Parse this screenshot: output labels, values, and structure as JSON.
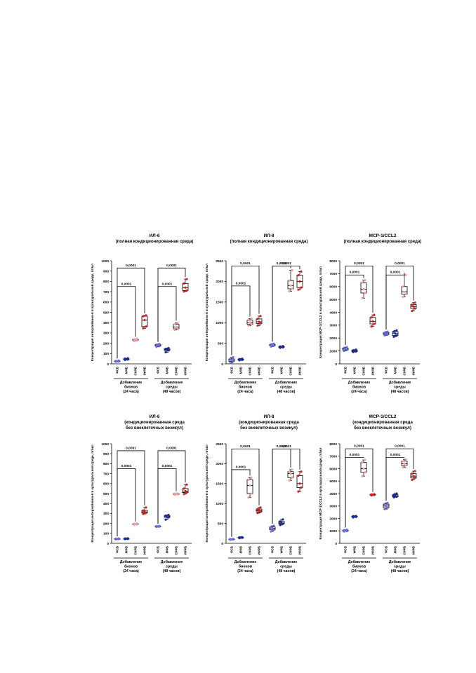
{
  "chart_data": [
    {
      "type": "box",
      "title": "ИЛ-6",
      "subtitle": "(полная кондиционированная среда)",
      "ylabel": "Концентрация интерлейкина-6 в культуральной среде, пг/мл",
      "ylim": [
        0,
        1000
      ],
      "yticks": [
        0,
        100,
        200,
        300,
        400,
        500,
        600,
        700,
        800,
        900,
        1000
      ],
      "categories": [
        "ФСБ",
        "МФБ",
        "СКФБ",
        "ИКФБ",
        "ФСБ",
        "МФБ",
        "СКФБ",
        "ИКФБ"
      ],
      "groups": [
        {
          "label": [
            "Добавление",
            "бионов",
            "(24 часа)"
          ]
        },
        {
          "label": [
            "Добавление",
            "среды",
            "(48 часов)"
          ]
        }
      ],
      "series_colors": [
        "#6a6ee0",
        "#1a2a9a",
        "#f0a0a0",
        "#d42020"
      ],
      "boxes": [
        {
          "min": 20,
          "q1": 22,
          "median": 25,
          "q3": 28,
          "max": 32
        },
        {
          "min": 38,
          "q1": 42,
          "median": 46,
          "q3": 50,
          "max": 54
        },
        {
          "min": 222,
          "q1": 228,
          "median": 233,
          "q3": 238,
          "max": 242
        },
        {
          "min": 345,
          "q1": 362,
          "median": 425,
          "q3": 462,
          "max": 470
        },
        {
          "min": 165,
          "q1": 172,
          "median": 180,
          "q3": 187,
          "max": 193
        },
        {
          "min": 112,
          "q1": 130,
          "median": 137,
          "q3": 145,
          "max": 153
        },
        {
          "min": 330,
          "q1": 340,
          "median": 357,
          "q3": 383,
          "max": 398
        },
        {
          "min": 702,
          "q1": 712,
          "median": 740,
          "q3": 780,
          "max": 822
        }
      ],
      "significance": [
        {
          "from": 0,
          "to": 3,
          "label": "0,0001",
          "y": 930
        },
        {
          "from": 0,
          "to": 2,
          "label": "0,0001",
          "y": 750
        },
        {
          "from": 4,
          "to": 7,
          "label": "0,0001",
          "y": 930
        },
        {
          "from": 4,
          "to": 6,
          "label": "0,0001",
          "y": 750
        }
      ]
    },
    {
      "type": "box",
      "title": "ИЛ-8",
      "subtitle": "(полная кондиционированная среда)",
      "ylabel": "Концентрация интерлейкина-8 в культуральной среде, пг/мл",
      "ylim": [
        0,
        2500
      ],
      "yticks": [
        0,
        500,
        1000,
        1500,
        2000,
        2500
      ],
      "categories": [
        "ФСБ",
        "МФБ",
        "СКФБ",
        "ИКФБ",
        "ФСБ",
        "МФБ",
        "СКФБ",
        "ИКФБ"
      ],
      "groups": [
        {
          "label": [
            "Добавление",
            "бионов",
            "(24 часа)"
          ]
        },
        {
          "label": [
            "Добавление",
            "среды",
            "(48 часов)"
          ]
        }
      ],
      "series_colors": [
        "#6a6ee0",
        "#1a2a9a",
        "#f0a0a0",
        "#d42020"
      ],
      "boxes": [
        {
          "min": 20,
          "q1": 60,
          "median": 90,
          "q3": 120,
          "max": 160
        },
        {
          "min": 85,
          "q1": 95,
          "median": 105,
          "q3": 115,
          "max": 125
        },
        {
          "min": 930,
          "q1": 960,
          "median": 1000,
          "q3": 1060,
          "max": 1100
        },
        {
          "min": 930,
          "q1": 980,
          "median": 1020,
          "q3": 1090,
          "max": 1160
        },
        {
          "min": 420,
          "q1": 440,
          "median": 455,
          "q3": 470,
          "max": 490
        },
        {
          "min": 390,
          "q1": 400,
          "median": 410,
          "q3": 420,
          "max": 430
        },
        {
          "min": 1760,
          "q1": 1820,
          "median": 1900,
          "q3": 2020,
          "max": 2270
        },
        {
          "min": 1800,
          "q1": 1850,
          "median": 2000,
          "q3": 2150,
          "max": 2240
        }
      ],
      "significance": [
        {
          "from": 0,
          "to": 3,
          "label": "0,0001",
          "y": 2370
        },
        {
          "from": 0,
          "to": 2,
          "label": "0,0001",
          "y": 1890
        },
        {
          "from": 4,
          "to": 7,
          "label": "0,0001",
          "y": 2370
        },
        {
          "from": 4,
          "to": 6,
          "label": "0,0001",
          "y": 2370
        }
      ]
    },
    {
      "type": "box",
      "title": "MCP-1/CCL2",
      "subtitle": "(полная кондиционированная среда)",
      "ylabel": "Концентрация MCP-1/CCL2 в культуральной среде, пг/мл",
      "ylim": [
        0,
        8000
      ],
      "yticks": [
        0,
        1000,
        2000,
        3000,
        4000,
        5000,
        6000,
        7000,
        8000
      ],
      "categories": [
        "ФСБ",
        "МФБ",
        "СКФБ",
        "ИКФБ",
        "ФСБ",
        "МФБ",
        "СКФБ",
        "ИКФБ"
      ],
      "groups": [
        {
          "label": [
            "Добавление",
            "бионов",
            "(24 часа)"
          ]
        },
        {
          "label": [
            "Добавление",
            "среды",
            "(48 часов)"
          ]
        }
      ],
      "series_colors": [
        "#6a6ee0",
        "#1a2a9a",
        "#f0a0a0",
        "#d42020"
      ],
      "boxes": [
        {
          "min": 1000,
          "q1": 1080,
          "median": 1150,
          "q3": 1230,
          "max": 1300
        },
        {
          "min": 920,
          "q1": 960,
          "median": 1000,
          "q3": 1050,
          "max": 1100
        },
        {
          "min": 5100,
          "q1": 5500,
          "median": 5800,
          "q3": 6300,
          "max": 6500
        },
        {
          "min": 2900,
          "q1": 3100,
          "median": 3300,
          "q3": 3600,
          "max": 3800
        },
        {
          "min": 2200,
          "q1": 2280,
          "median": 2350,
          "q3": 2420,
          "max": 2500
        },
        {
          "min": 2100,
          "q1": 2200,
          "median": 2350,
          "q3": 2500,
          "max": 2600
        },
        {
          "min": 5200,
          "q1": 5400,
          "median": 5600,
          "q3": 6000,
          "max": 6900
        },
        {
          "min": 4100,
          "q1": 4300,
          "median": 4450,
          "q3": 4600,
          "max": 4750
        }
      ],
      "significance": [
        {
          "from": 0,
          "to": 3,
          "label": "0,0001",
          "y": 7600
        },
        {
          "from": 0,
          "to": 2,
          "label": "0,0001",
          "y": 6900
        },
        {
          "from": 4,
          "to": 7,
          "label": "0,0001",
          "y": 7600
        },
        {
          "from": 4,
          "to": 6,
          "label": "0,0001",
          "y": 6900
        }
      ]
    },
    {
      "type": "box",
      "title": "ИЛ-6",
      "subtitle": "(кондиционированная среда",
      "subtitle2": "без внеклеточных везикул)",
      "ylabel": "Концентрация интерлейкина-6 в культуральной среде, пг/мл",
      "ylim": [
        0,
        1000
      ],
      "yticks": [
        0,
        100,
        200,
        300,
        400,
        500,
        600,
        700,
        800,
        900,
        1000
      ],
      "categories": [
        "ФСБ",
        "МФБ",
        "СКФБ",
        "ИКФБ",
        "ФСБ",
        "МФБ",
        "СКФБ",
        "ИКФБ"
      ],
      "groups": [
        {
          "label": [
            "Добавление",
            "бионов",
            "(24 часа)"
          ]
        },
        {
          "label": [
            "Добавление",
            "среды",
            "(48 часов)"
          ]
        }
      ],
      "series_colors": [
        "#6a6ee0",
        "#1a2a9a",
        "#f0a0a0",
        "#d42020"
      ],
      "boxes": [
        {
          "min": 40,
          "q1": 42,
          "median": 44,
          "q3": 46,
          "max": 48
        },
        {
          "min": 42,
          "q1": 44,
          "median": 46,
          "q3": 48,
          "max": 50
        },
        {
          "min": 188,
          "q1": 190,
          "median": 193,
          "q3": 196,
          "max": 198
        },
        {
          "min": 295,
          "q1": 305,
          "median": 315,
          "q3": 330,
          "max": 360
        },
        {
          "min": 165,
          "q1": 167,
          "median": 170,
          "q3": 173,
          "max": 175
        },
        {
          "min": 238,
          "q1": 260,
          "median": 270,
          "q3": 278,
          "max": 285
        },
        {
          "min": 488,
          "q1": 492,
          "median": 495,
          "q3": 498,
          "max": 502
        },
        {
          "min": 495,
          "q1": 510,
          "median": 525,
          "q3": 550,
          "max": 590
        }
      ],
      "significance": [
        {
          "from": 0,
          "to": 3,
          "label": "0,0001",
          "y": 930
        },
        {
          "from": 0,
          "to": 2,
          "label": "0,0001",
          "y": 750
        },
        {
          "from": 4,
          "to": 7,
          "label": "0,0001",
          "y": 930
        },
        {
          "from": 4,
          "to": 6,
          "label": "0,0001",
          "y": 750
        }
      ]
    },
    {
      "type": "box",
      "title": "ИЛ-8",
      "subtitle": "(кондиционированная среда",
      "subtitle2": "без внеклеточных везикул)",
      "ylabel": "Концентрация интерлейкина-8 в культуральной среде, пг/мл",
      "ylim": [
        0,
        2500
      ],
      "yticks": [
        0,
        500,
        1000,
        1500,
        2000,
        2500
      ],
      "categories": [
        "ФСБ",
        "МФБ",
        "СКФБ",
        "ИКФБ",
        "ФСБ",
        "МФБ",
        "СКФБ",
        "ИКФБ"
      ],
      "groups": [
        {
          "label": [
            "Добавление",
            "бионов",
            "(24 часа)"
          ]
        },
        {
          "label": [
            "Добавление",
            "среды",
            "(48 часов)"
          ]
        }
      ],
      "series_colors": [
        "#6a6ee0",
        "#1a2a9a",
        "#f0a0a0",
        "#d42020"
      ],
      "boxes": [
        {
          "min": 90,
          "q1": 95,
          "median": 100,
          "q3": 105,
          "max": 110
        },
        {
          "min": 130,
          "q1": 138,
          "median": 145,
          "q3": 150,
          "max": 155
        },
        {
          "min": 1150,
          "q1": 1250,
          "median": 1450,
          "q3": 1600,
          "max": 1650
        },
        {
          "min": 760,
          "q1": 790,
          "median": 820,
          "q3": 860,
          "max": 900
        },
        {
          "min": 300,
          "q1": 340,
          "median": 380,
          "q3": 410,
          "max": 440
        },
        {
          "min": 460,
          "q1": 490,
          "median": 510,
          "q3": 550,
          "max": 600
        },
        {
          "min": 1580,
          "q1": 1650,
          "median": 1750,
          "q3": 1800,
          "max": 1850
        },
        {
          "min": 1300,
          "q1": 1400,
          "median": 1500,
          "q3": 1700,
          "max": 1800
        }
      ],
      "significance": [
        {
          "from": 0,
          "to": 3,
          "label": "0,0001",
          "y": 2370
        },
        {
          "from": 0,
          "to": 2,
          "label": "0,0001",
          "y": 1850
        },
        {
          "from": 4,
          "to": 7,
          "label": "0,0001",
          "y": 2370
        },
        {
          "from": 4,
          "to": 6,
          "label": "0,0001",
          "y": 2370
        }
      ]
    },
    {
      "type": "box",
      "title": "MCP-1/CCL2",
      "subtitle": "(кондиционированная среда",
      "subtitle2": "без внеклеточных везикул)",
      "ylabel": "Концентрация MCP-1/CCL2 в культуральной среде, пг/мл",
      "ylim": [
        0,
        8000
      ],
      "yticks": [
        0,
        1000,
        2000,
        3000,
        4000,
        5000,
        6000,
        7000,
        8000
      ],
      "categories": [
        "ФСБ",
        "МФБ",
        "СКФБ",
        "ИКФБ",
        "ФСБ",
        "МФБ",
        "СКФБ",
        "ИКФБ"
      ],
      "groups": [
        {
          "label": [
            "Добавление",
            "бионов",
            "(24 часа)"
          ]
        },
        {
          "label": [
            "Добавление",
            "среды",
            "(48 часов)"
          ]
        }
      ],
      "series_colors": [
        "#6a6ee0",
        "#1a2a9a",
        "#f0a0a0",
        "#d42020"
      ],
      "boxes": [
        {
          "min": 950,
          "q1": 980,
          "median": 1020,
          "q3": 1060,
          "max": 1100
        },
        {
          "min": 2080,
          "q1": 2120,
          "median": 2150,
          "q3": 2180,
          "max": 2200
        },
        {
          "min": 5400,
          "q1": 5700,
          "median": 6000,
          "q3": 6500,
          "max": 6700
        },
        {
          "min": 3850,
          "q1": 3880,
          "median": 3900,
          "q3": 3930,
          "max": 3950
        },
        {
          "min": 2750,
          "q1": 2850,
          "median": 3000,
          "q3": 3150,
          "max": 3250
        },
        {
          "min": 3700,
          "q1": 3750,
          "median": 3800,
          "q3": 3900,
          "max": 4000
        },
        {
          "min": 6100,
          "q1": 6250,
          "median": 6400,
          "q3": 6600,
          "max": 6750
        },
        {
          "min": 5100,
          "q1": 5250,
          "median": 5400,
          "q3": 5600,
          "max": 5800
        }
      ],
      "significance": [
        {
          "from": 0,
          "to": 3,
          "label": "0,0001",
          "y": 7600
        },
        {
          "from": 0,
          "to": 2,
          "label": "0,0001",
          "y": 6900
        },
        {
          "from": 4,
          "to": 7,
          "label": "0,0001",
          "y": 7600
        },
        {
          "from": 4,
          "to": 6,
          "label": "0,0001",
          "y": 6900
        }
      ]
    }
  ]
}
